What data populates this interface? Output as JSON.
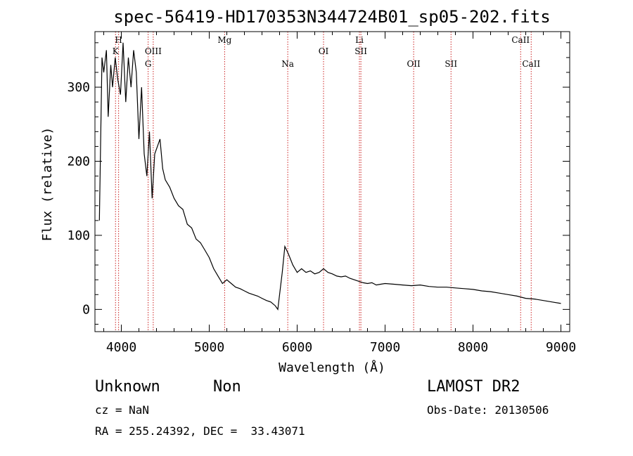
{
  "chart_data": {
    "type": "line",
    "title": "spec-56419-HD170353N344724B01_sp05-202.fits",
    "xlabel": "Wavelength (Å)",
    "ylabel": "Flux (relative)",
    "xlim": [
      3700,
      9100
    ],
    "ylim": [
      -30,
      375
    ],
    "xticks": [
      4000,
      5000,
      6000,
      7000,
      8000,
      9000
    ],
    "yticks": [
      0,
      100,
      200,
      300
    ],
    "grid": false,
    "series": [
      {
        "x": [
          3750,
          3780,
          3800,
          3830,
          3850,
          3880,
          3900,
          3930,
          3960,
          3990,
          4020,
          4050,
          4080,
          4110,
          4140,
          4170,
          4200,
          4230,
          4260,
          4290,
          4320,
          4350,
          4380,
          4410,
          4440,
          4470,
          4500,
          4550,
          4600,
          4650,
          4700,
          4750,
          4800,
          4850,
          4900,
          4950,
          5000,
          5050,
          5100,
          5150,
          5200,
          5250,
          5300,
          5350,
          5400,
          5450,
          5500,
          5550,
          5600,
          5650,
          5700,
          5750,
          5780,
          5800,
          5830,
          5860,
          5900,
          5950,
          6000,
          6050,
          6100,
          6150,
          6200,
          6250,
          6300,
          6350,
          6400,
          6450,
          6500,
          6550,
          6600,
          6650,
          6700,
          6750,
          6800,
          6850,
          6900,
          6950,
          7000,
          7100,
          7200,
          7300,
          7400,
          7500,
          7600,
          7700,
          7800,
          7900,
          8000,
          8100,
          8200,
          8300,
          8400,
          8500,
          8600,
          8700,
          8800,
          8900,
          9000
        ],
        "y": [
          120,
          340,
          320,
          350,
          260,
          330,
          300,
          340,
          310,
          290,
          360,
          280,
          340,
          300,
          350,
          320,
          230,
          300,
          210,
          180,
          240,
          150,
          210,
          220,
          230,
          190,
          175,
          165,
          150,
          140,
          135,
          115,
          110,
          95,
          90,
          80,
          70,
          55,
          45,
          35,
          40,
          35,
          30,
          28,
          25,
          22,
          20,
          18,
          15,
          12,
          10,
          5,
          0,
          20,
          50,
          85,
          75,
          60,
          50,
          55,
          50,
          52,
          48,
          50,
          55,
          50,
          48,
          45,
          44,
          45,
          42,
          40,
          38,
          36,
          35,
          36,
          33,
          34,
          35,
          34,
          33,
          32,
          33,
          31,
          30,
          30,
          29,
          28,
          27,
          25,
          24,
          22,
          20,
          18,
          15,
          14,
          12,
          10,
          8
        ]
      }
    ],
    "spectral_lines": [
      {
        "label": "K",
        "x": 3934,
        "tier": 1
      },
      {
        "label": "H",
        "x": 3969,
        "tier": 0
      },
      {
        "label": "G",
        "x": 4305,
        "tier": 2
      },
      {
        "label": "OIII",
        "x": 4363,
        "tier": 1
      },
      {
        "label": "Mg",
        "x": 5175,
        "tier": 0
      },
      {
        "label": "Na",
        "x": 5893,
        "tier": 2
      },
      {
        "label": "OI",
        "x": 6300,
        "tier": 1
      },
      {
        "label": "Li",
        "x": 6708,
        "tier": 0
      },
      {
        "label": "SII",
        "x": 6725,
        "tier": 1
      },
      {
        "label": "OII",
        "x": 7325,
        "tier": 2
      },
      {
        "label": "SII",
        "x": 7750,
        "tier": 2
      },
      {
        "label": "CaII",
        "x": 8542,
        "tier": 0
      },
      {
        "label": "CaII",
        "x": 8662,
        "tier": 2
      }
    ]
  },
  "info": {
    "object": "Unknown",
    "class": "Non",
    "survey": "LAMOST DR2",
    "cz": "cz = NaN",
    "obsdate": "Obs-Date: 20130506",
    "radec": "RA = 255.24392, DEC =  33.43071"
  },
  "colors": {
    "spectral_line": "#cc2222",
    "curve": "#000000"
  }
}
